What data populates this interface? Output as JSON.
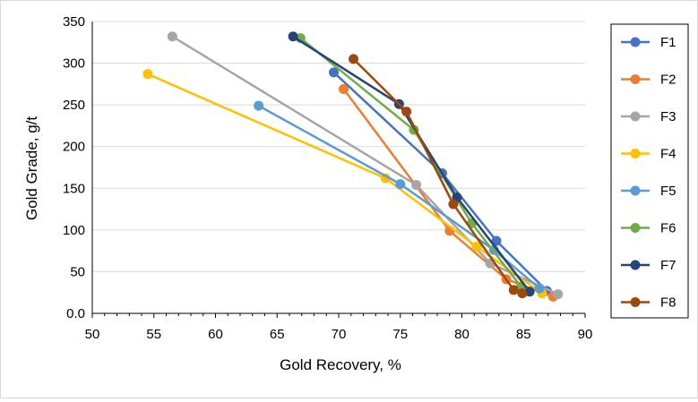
{
  "chart_data": {
    "type": "line",
    "title": "",
    "xlabel": "Gold Recovery, %",
    "ylabel": "Gold Grade, g/t",
    "xlim": [
      50,
      90
    ],
    "ylim": [
      0,
      350
    ],
    "x_ticks": [
      "50",
      "55",
      "60",
      "65",
      "70",
      "75",
      "80",
      "85",
      "90"
    ],
    "y_ticks": [
      "0.0",
      "50",
      "100",
      "150",
      "200",
      "250",
      "300",
      "350"
    ],
    "grid": "horizontal",
    "legend_position": "right",
    "series": [
      {
        "name": "F1",
        "color": "#4472C4",
        "points": [
          [
            69.6,
            289
          ],
          [
            78.4,
            168
          ],
          [
            82.8,
            87
          ],
          [
            86.9,
            27
          ]
        ]
      },
      {
        "name": "F2",
        "color": "#ED7D31",
        "points": [
          [
            70.4,
            269
          ],
          [
            79.0,
            99
          ],
          [
            83.6,
            41
          ],
          [
            87.4,
            20
          ]
        ]
      },
      {
        "name": "F3",
        "color": "#A5A5A5",
        "points": [
          [
            56.5,
            332
          ],
          [
            76.3,
            154
          ],
          [
            82.3,
            60
          ],
          [
            87.8,
            23
          ]
        ]
      },
      {
        "name": "F4",
        "color": "#FFC000",
        "points": [
          [
            54.5,
            287
          ],
          [
            73.8,
            162
          ],
          [
            81.2,
            80
          ],
          [
            86.5,
            24
          ]
        ]
      },
      {
        "name": "F5",
        "color": "#5B9BD5",
        "points": [
          [
            63.5,
            249
          ],
          [
            75.0,
            155
          ],
          [
            82.6,
            76
          ],
          [
            86.3,
            30
          ]
        ]
      },
      {
        "name": "F6",
        "color": "#70AD47",
        "points": [
          [
            66.9,
            330
          ],
          [
            76.1,
            220
          ],
          [
            80.8,
            108
          ],
          [
            84.8,
            32
          ]
        ]
      },
      {
        "name": "F7",
        "color": "#264478",
        "points": [
          [
            66.3,
            332
          ],
          [
            74.9,
            251
          ],
          [
            79.6,
            139
          ],
          [
            85.5,
            26
          ]
        ]
      },
      {
        "name": "F8",
        "color": "#9E480E",
        "points": [
          [
            71.2,
            305
          ],
          [
            75.5,
            242
          ],
          [
            79.3,
            131
          ],
          [
            84.2,
            28
          ],
          [
            84.9,
            24
          ]
        ]
      }
    ]
  }
}
